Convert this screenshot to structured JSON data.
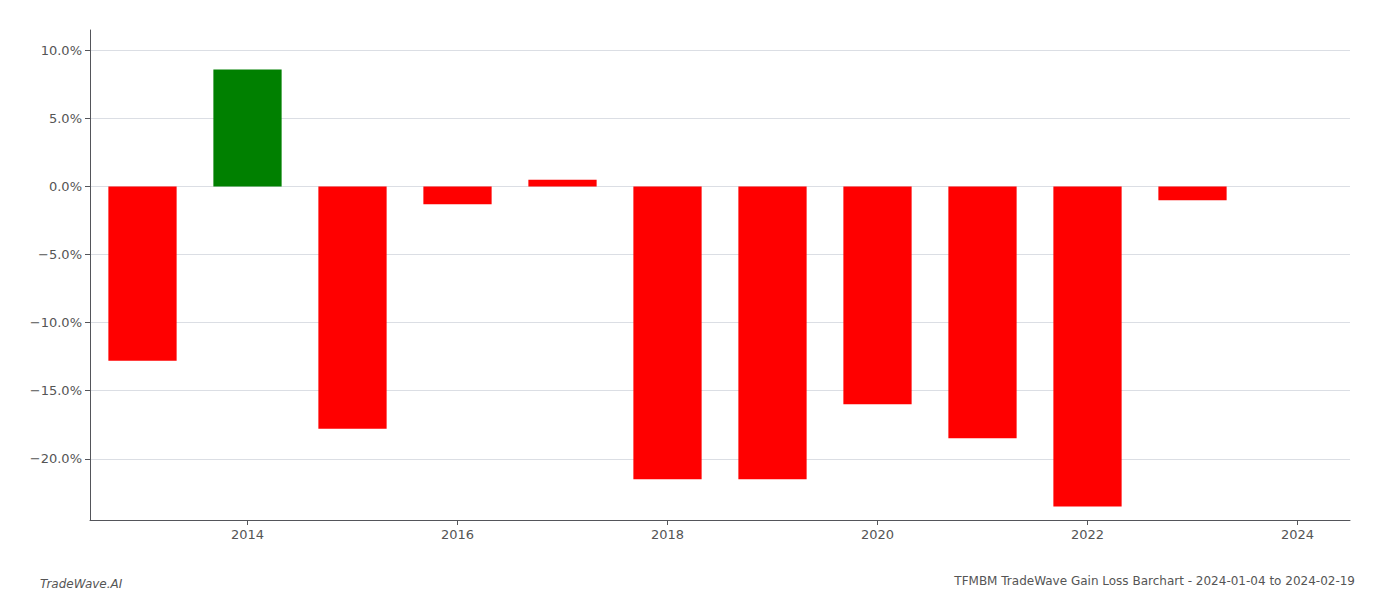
{
  "chart_data": {
    "type": "bar",
    "title": "TFMBM TradeWave Gain Loss Barchart - 2024-01-04 to 2024-02-19",
    "annotations": [
      "TradeWave.AI"
    ],
    "x": [
      2013,
      2014,
      2015,
      2016,
      2017,
      2018,
      2019,
      2020,
      2021,
      2022,
      2023
    ],
    "values": [
      -0.128,
      0.086,
      -0.178,
      -0.013,
      0.005,
      -0.215,
      -0.215,
      -0.16,
      -0.185,
      -0.235,
      -0.01
    ],
    "colors": [
      "red",
      "green",
      "red",
      "red",
      "red",
      "red",
      "red",
      "red",
      "red",
      "red",
      "red"
    ],
    "xlim": [
      2012.5,
      2024.5
    ],
    "xticks": [
      2014,
      2016,
      2018,
      2020,
      2022,
      2024
    ],
    "ylim": [
      -0.245,
      0.115
    ],
    "yticks": [
      {
        "value": -0.2,
        "label": "−20.0%"
      },
      {
        "value": -0.15,
        "label": "−15.0%"
      },
      {
        "value": -0.1,
        "label": "−10.0%"
      },
      {
        "value": -0.05,
        "label": "−5.0%"
      },
      {
        "value": 0,
        "label": "0.0%"
      },
      {
        "value": 0.05,
        "label": "5.0%"
      },
      {
        "value": 0.1,
        "label": "10.0%"
      }
    ],
    "grid": true
  }
}
